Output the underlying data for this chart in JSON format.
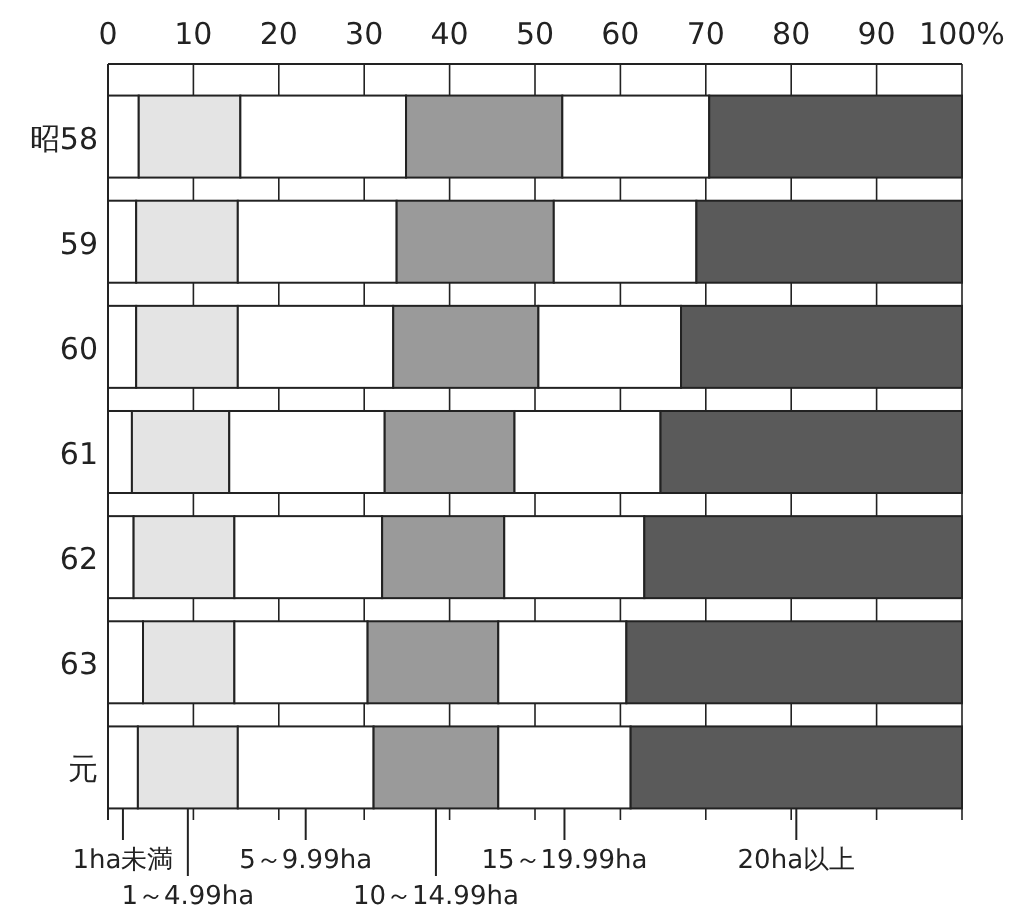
{
  "chart_data": {
    "type": "bar",
    "orientation": "horizontal",
    "stacked": true,
    "grid": "x",
    "legend": "bottom",
    "categories": [
      "昭58",
      "59",
      "60",
      "61",
      "62",
      "63",
      "元"
    ],
    "xlim": [
      0,
      100
    ],
    "xticks": [
      0,
      10,
      20,
      30,
      40,
      50,
      60,
      70,
      80,
      90,
      {
        "value": 100,
        "label": "100%"
      }
    ],
    "series": [
      {
        "name": "1ha未満",
        "color": "#ffffff",
        "values": [
          3.6,
          3.3,
          3.3,
          2.8,
          3.0,
          4.1,
          3.5
        ]
      },
      {
        "name": "1～4.99ha",
        "color": "#e4e4e4",
        "values": [
          11.9,
          11.9,
          11.9,
          11.4,
          11.8,
          10.7,
          11.7
        ]
      },
      {
        "name": "5～9.99ha",
        "color": "#ffffff",
        "values": [
          19.4,
          18.6,
          18.2,
          18.2,
          17.3,
          15.6,
          15.9
        ]
      },
      {
        "name": "10～14.99ha",
        "color": "#9a9a9a",
        "values": [
          18.3,
          18.4,
          17.0,
          15.2,
          14.3,
          15.3,
          14.6
        ]
      },
      {
        "name": "15～19.99ha",
        "color": "#ffffff",
        "values": [
          17.2,
          16.7,
          16.7,
          17.1,
          16.4,
          15.0,
          15.5
        ]
      },
      {
        "name": "20ha以上",
        "color": "#5a5a5a",
        "values": [
          29.6,
          31.1,
          32.9,
          35.3,
          37.2,
          39.3,
          38.8
        ]
      }
    ]
  }
}
